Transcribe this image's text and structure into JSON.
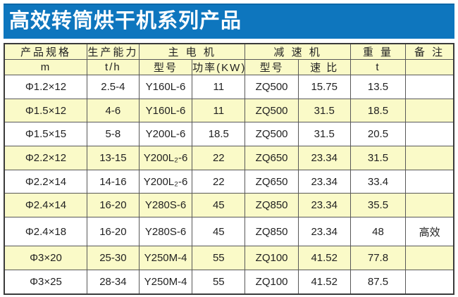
{
  "title": "高效转筒烘干机系列产品",
  "colors": {
    "title_bg": "#0e76be",
    "title_text": "#ffffff",
    "header_bg": "#fafac8",
    "row_bg": "#ffffff",
    "row_alt_bg": "#fafac8",
    "border": "#585858",
    "text": "#222222"
  },
  "table": {
    "header_groups": [
      {
        "label": "产品规格",
        "colspan": 1
      },
      {
        "label": "生产能力",
        "colspan": 1
      },
      {
        "label": "主 电 机",
        "colspan": 2
      },
      {
        "label": "减 速 机",
        "colspan": 2
      },
      {
        "label": "重 量",
        "colspan": 1
      },
      {
        "label": "备 注",
        "colspan": 1
      }
    ],
    "header_units": [
      "m",
      "t/h",
      "型号",
      "功率(KW)",
      "型号",
      "速 比",
      "t",
      ""
    ],
    "column_names": [
      "spec",
      "capacity",
      "motor-model",
      "motor-power",
      "reducer-model",
      "reducer-ratio",
      "weight",
      "remark"
    ],
    "column_widths_pct": [
      18.4,
      11.6,
      11.8,
      11.8,
      11.8,
      11.6,
      12.3,
      10.7
    ],
    "rows": [
      [
        "Φ1.2×12",
        "2.5-4",
        "Y160L-6",
        "11",
        "ZQ500",
        "15.75",
        "13.5",
        ""
      ],
      [
        "Φ1.5×12",
        "4-6",
        "Y160L-6",
        "11",
        "ZQ500",
        "31.5",
        "18.5",
        ""
      ],
      [
        "Φ1.5×15",
        "5-8",
        "Y200L-6",
        "18.5",
        "ZQ500",
        "31.5",
        "20.5",
        ""
      ],
      [
        "Φ2.2×12",
        "13-15",
        "Y200L₂-6",
        "22",
        "ZQ650",
        "23.34",
        "31.5",
        ""
      ],
      [
        "Φ2.2×14",
        "14-16",
        "Y200L₂-6",
        "22",
        "ZQ650",
        "23.34",
        "33.4",
        ""
      ],
      [
        "Φ2.4×14",
        "16-20",
        "Y280S-6",
        "45",
        "ZQ850",
        "23.34",
        "35.5",
        ""
      ],
      [
        "Φ2.4×18",
        "16-20",
        "Y280S-6",
        "45",
        "ZQ850",
        "23.34",
        "48",
        "高效"
      ],
      [
        "Φ3×20",
        "25-30",
        "Y250M-4",
        "55",
        "ZQ100",
        "41.52",
        "77.8",
        ""
      ],
      [
        "Φ3×25",
        "28-34",
        "Y250M-4",
        "55",
        "ZQ100",
        "41.52",
        "87.5",
        ""
      ]
    ]
  }
}
